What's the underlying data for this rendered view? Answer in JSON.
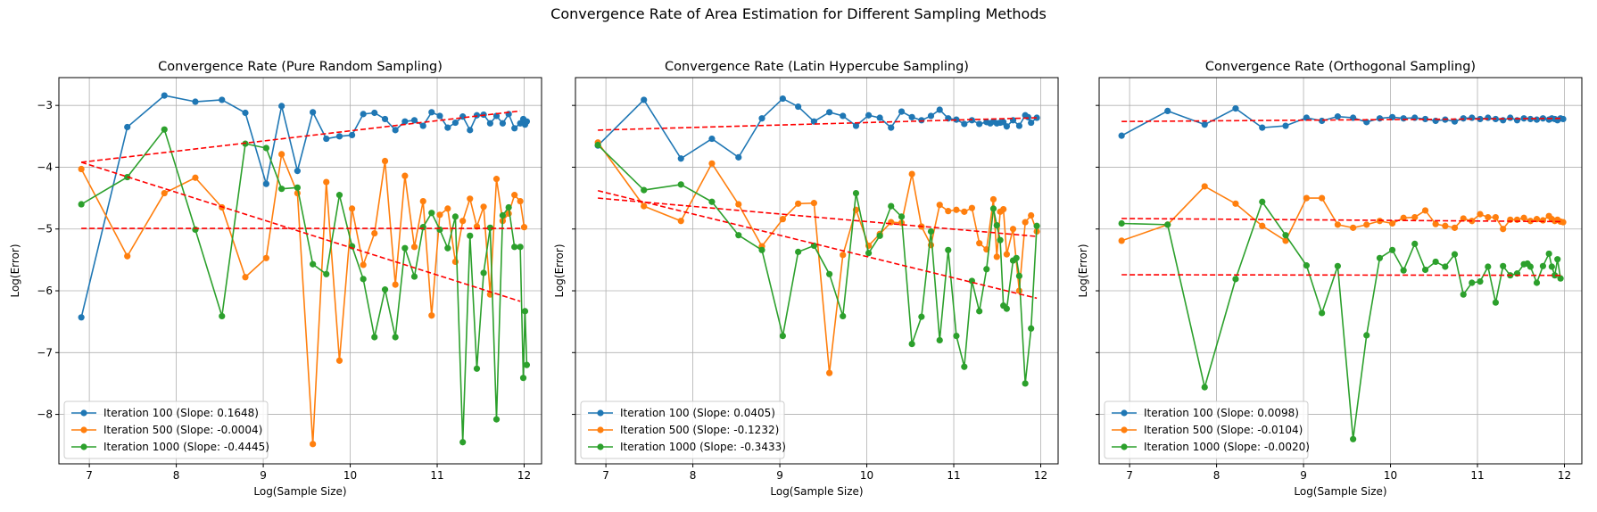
{
  "figure": {
    "title": "Convergence Rate of Area Estimation for Different Sampling Methods"
  },
  "colors": {
    "iter100": "#1f77b4",
    "iter500": "#ff7f0e",
    "iter1000": "#2ca02c",
    "fit": "#ff0000",
    "grid": "#b0b0b0"
  },
  "chart_data": [
    {
      "type": "line",
      "title": "Convergence Rate (Pure Random Sampling)",
      "xlabel": "Log(Sample Size)",
      "ylabel": "Log(Error)",
      "xlim": [
        6.65,
        12.2
      ],
      "ylim": [
        -8.8,
        -2.55
      ],
      "xticks": [
        7,
        8,
        9,
        10,
        11,
        12
      ],
      "yticks": [
        -8,
        -7,
        -6,
        -5,
        -4,
        -3
      ],
      "grid": true,
      "legend_position": "lower-left",
      "x": [
        6.908,
        7.437,
        7.863,
        8.219,
        8.525,
        8.794,
        9.034,
        9.211,
        9.393,
        9.57,
        9.725,
        9.876,
        10.021,
        10.15,
        10.279,
        10.4,
        10.519,
        10.629,
        10.738,
        10.838,
        10.936,
        11.03,
        11.121,
        11.209,
        11.294,
        11.377,
        11.456,
        11.534,
        11.609,
        11.682,
        11.753,
        11.822,
        11.889,
        11.955
      ],
      "series": [
        {
          "name": "Iteration 100 (Slope: 0.1648)",
          "key": "iter100",
          "values": [
            -6.43,
            -3.35,
            -2.84,
            -2.94,
            -2.91,
            -3.12,
            -4.27,
            -3.01,
            -4.06,
            -3.11,
            -3.54,
            -3.5,
            -3.48,
            -3.14,
            -3.12,
            -3.22,
            -3.4,
            -3.26,
            -3.24,
            -3.33,
            -3.11,
            -3.17,
            -3.36,
            -3.28,
            -3.18,
            -3.4,
            -3.16,
            -3.15,
            -3.29,
            -3.17,
            -3.29,
            -3.14,
            -3.37,
            -3.29,
            -3.22,
            -3.31,
            -3.26
          ],
          "x": [
            6.908,
            7.437,
            7.863,
            8.219,
            8.525,
            8.794,
            9.034,
            9.211,
            9.393,
            9.57,
            9.725,
            9.876,
            10.021,
            10.15,
            10.279,
            10.4,
            10.519,
            10.629,
            10.738,
            10.838,
            10.936,
            11.03,
            11.121,
            11.209,
            11.294,
            11.377,
            11.456,
            11.534,
            11.609,
            11.682,
            11.753,
            11.822,
            11.889,
            11.955,
            11.99,
            12.01,
            12.03
          ]
        },
        {
          "name": "Iteration 500 (Slope: -0.0004)",
          "key": "iter500",
          "values": [
            -4.03,
            -5.44,
            -4.42,
            -4.17,
            -4.65,
            -5.78,
            -5.47,
            -3.79,
            -4.42,
            -8.48,
            -4.24,
            -7.13,
            -4.67,
            -5.58,
            -5.07,
            -3.9,
            -5.9,
            -4.14,
            -5.29,
            -4.55,
            -6.4,
            -4.77,
            -4.67,
            -5.53,
            -4.87,
            -4.51,
            -4.96,
            -4.64,
            -6.06,
            -4.19,
            -4.87,
            -4.75,
            -4.45,
            -4.55,
            -4.97
          ],
          "x": [
            6.908,
            7.437,
            7.863,
            8.219,
            8.525,
            8.794,
            9.034,
            9.211,
            9.393,
            9.57,
            9.725,
            9.876,
            10.021,
            10.15,
            10.279,
            10.4,
            10.519,
            10.629,
            10.738,
            10.838,
            10.936,
            11.03,
            11.121,
            11.209,
            11.294,
            11.377,
            11.456,
            11.534,
            11.609,
            11.682,
            11.753,
            11.822,
            11.889,
            11.955,
            12.0
          ]
        },
        {
          "name": "Iteration 1000 (Slope: -0.4445)",
          "key": "iter1000",
          "values": [
            -4.6,
            -4.16,
            -3.39,
            -5.01,
            -6.41,
            -3.62,
            -3.69,
            -4.35,
            -4.33,
            -5.57,
            -5.73,
            -4.45,
            -5.28,
            -5.81,
            -6.75,
            -5.98,
            -6.75,
            -5.31,
            -5.77,
            -4.97,
            -4.74,
            -5.01,
            -5.31,
            -4.8,
            -8.45,
            -5.11,
            -7.26,
            -5.71,
            -4.98,
            -8.08,
            -4.78,
            -4.65,
            -5.29,
            -5.29,
            -7.41,
            -6.33,
            -7.2
          ],
          "x": [
            6.908,
            7.437,
            7.863,
            8.219,
            8.525,
            8.794,
            9.034,
            9.211,
            9.393,
            9.57,
            9.725,
            9.876,
            10.021,
            10.15,
            10.279,
            10.4,
            10.519,
            10.629,
            10.738,
            10.838,
            10.936,
            11.03,
            11.121,
            11.209,
            11.294,
            11.377,
            11.456,
            11.534,
            11.609,
            11.682,
            11.753,
            11.822,
            11.889,
            11.955,
            11.99,
            12.01,
            12.03
          ]
        }
      ],
      "fits": [
        {
          "key": "iter100",
          "x": [
            6.908,
            11.955
          ],
          "y": [
            -3.92,
            -3.09
          ]
        },
        {
          "key": "iter500",
          "x": [
            6.908,
            11.955
          ],
          "y": [
            -4.99,
            -4.99
          ]
        },
        {
          "key": "iter1000",
          "x": [
            6.908,
            11.955
          ],
          "y": [
            -3.92,
            -6.17
          ]
        }
      ]
    },
    {
      "type": "line",
      "title": "Convergence Rate (Latin Hypercube Sampling)",
      "xlabel": "Log(Sample Size)",
      "ylabel": "Log(Error)",
      "xlim": [
        6.65,
        12.2
      ],
      "ylim": [
        -8.8,
        -2.55
      ],
      "xticks": [
        7,
        8,
        9,
        10,
        11,
        12
      ],
      "yticks": [
        -8,
        -7,
        -6,
        -5,
        -4,
        -3
      ],
      "grid": true,
      "legend_position": "lower-left",
      "series": [
        {
          "name": "Iteration 100 (Slope: 0.0405)",
          "key": "iter100",
          "values": [
            -3.65,
            -2.91,
            -3.86,
            -3.54,
            -3.84,
            -3.21,
            -2.89,
            -3.02,
            -3.26,
            -3.11,
            -3.17,
            -3.33,
            -3.16,
            -3.2,
            -3.36,
            -3.1,
            -3.19,
            -3.24,
            -3.17,
            -3.07,
            -3.21,
            -3.23,
            -3.3,
            -3.24,
            -3.3,
            -3.27,
            -3.29,
            -3.26,
            -3.29,
            -3.28,
            -3.27,
            -3.34,
            -3.24,
            -3.33,
            -3.16,
            -3.19,
            -3.28,
            -3.2
          ],
          "x": [
            6.908,
            7.437,
            7.863,
            8.219,
            8.525,
            8.794,
            9.034,
            9.211,
            9.393,
            9.57,
            9.725,
            9.876,
            10.021,
            10.15,
            10.279,
            10.4,
            10.519,
            10.629,
            10.738,
            10.838,
            10.936,
            11.03,
            11.121,
            11.209,
            11.294,
            11.377,
            11.42,
            11.456,
            11.495,
            11.534,
            11.571,
            11.609,
            11.682,
            11.753,
            11.822,
            11.855,
            11.889,
            11.955
          ]
        },
        {
          "name": "Iteration 500 (Slope: -0.1232)",
          "key": "iter500",
          "values": [
            -3.6,
            -4.63,
            -4.87,
            -3.94,
            -4.6,
            -5.28,
            -4.84,
            -4.59,
            -4.58,
            -7.33,
            -5.42,
            -4.69,
            -5.27,
            -5.08,
            -4.89,
            -4.9,
            -4.11,
            -4.96,
            -5.26,
            -4.61,
            -4.71,
            -4.69,
            -4.72,
            -4.66,
            -5.23,
            -5.33,
            -4.52,
            -5.45,
            -4.72,
            -4.68,
            -5.41,
            -5.0,
            -6.0,
            -4.89,
            -4.78,
            -5.04
          ],
          "x": [
            6.908,
            7.437,
            7.863,
            8.219,
            8.525,
            8.794,
            9.034,
            9.211,
            9.393,
            9.57,
            9.725,
            9.876,
            10.021,
            10.15,
            10.279,
            10.4,
            10.519,
            10.629,
            10.738,
            10.838,
            10.936,
            11.03,
            11.121,
            11.209,
            11.294,
            11.377,
            11.456,
            11.495,
            11.534,
            11.571,
            11.609,
            11.682,
            11.753,
            11.822,
            11.889,
            11.955
          ]
        },
        {
          "name": "Iteration 1000 (Slope: -0.3433)",
          "key": "iter1000",
          "values": [
            -3.64,
            -4.37,
            -4.28,
            -4.56,
            -5.1,
            -5.34,
            -6.73,
            -5.37,
            -5.27,
            -5.73,
            -6.41,
            -4.42,
            -5.39,
            -5.11,
            -4.63,
            -4.8,
            -6.86,
            -6.42,
            -5.04,
            -6.8,
            -5.34,
            -6.73,
            -7.23,
            -5.84,
            -6.33,
            -5.65,
            -4.67,
            -4.94,
            -5.18,
            -6.24,
            -6.29,
            -5.51,
            -5.47,
            -5.76,
            -7.5,
            -6.61,
            -4.95
          ],
          "x": [
            6.908,
            7.437,
            7.863,
            8.219,
            8.525,
            8.794,
            9.034,
            9.211,
            9.393,
            9.57,
            9.725,
            9.876,
            10.021,
            10.15,
            10.279,
            10.4,
            10.519,
            10.629,
            10.738,
            10.838,
            10.936,
            11.03,
            11.121,
            11.209,
            11.294,
            11.377,
            11.456,
            11.495,
            11.534,
            11.571,
            11.609,
            11.682,
            11.72,
            11.753,
            11.822,
            11.889,
            11.955
          ]
        }
      ],
      "fits": [
        {
          "key": "iter100",
          "x": [
            6.908,
            11.955
          ],
          "y": [
            -3.4,
            -3.2
          ]
        },
        {
          "key": "iter500",
          "x": [
            6.908,
            11.955
          ],
          "y": [
            -4.5,
            -5.12
          ]
        },
        {
          "key": "iter1000",
          "x": [
            6.908,
            11.955
          ],
          "y": [
            -4.38,
            -6.12
          ]
        }
      ]
    },
    {
      "type": "line",
      "title": "Convergence Rate (Orthogonal Sampling)",
      "xlabel": "Log(Sample Size)",
      "ylabel": "Log(Error)",
      "xlim": [
        6.65,
        12.2
      ],
      "ylim": [
        -8.8,
        -2.55
      ],
      "xticks": [
        7,
        8,
        9,
        10,
        11,
        12
      ],
      "yticks": [
        -8,
        -7,
        -6,
        -5,
        -4,
        -3
      ],
      "grid": true,
      "legend_position": "lower-left",
      "series": [
        {
          "name": "Iteration 100 (Slope: 0.0098)",
          "key": "iter100",
          "values": [
            -3.49,
            -3.09,
            -3.31,
            -3.05,
            -3.36,
            -3.33,
            -3.2,
            -3.25,
            -3.18,
            -3.2,
            -3.27,
            -3.21,
            -3.19,
            -3.21,
            -3.2,
            -3.22,
            -3.25,
            -3.23,
            -3.26,
            -3.21,
            -3.2,
            -3.22,
            -3.2,
            -3.22,
            -3.24,
            -3.2,
            -3.24,
            -3.21,
            -3.22,
            -3.23,
            -3.21,
            -3.23,
            -3.21,
            -3.22,
            -3.24,
            -3.21,
            -3.22
          ],
          "x": [
            6.908,
            7.437,
            7.863,
            8.219,
            8.525,
            8.794,
            9.034,
            9.211,
            9.393,
            9.57,
            9.725,
            9.876,
            10.021,
            10.15,
            10.279,
            10.4,
            10.519,
            10.629,
            10.738,
            10.838,
            10.936,
            11.03,
            11.121,
            11.209,
            11.294,
            11.377,
            11.456,
            11.534,
            11.609,
            11.682,
            11.753,
            11.822,
            11.855,
            11.889,
            11.92,
            11.955,
            11.985
          ]
        },
        {
          "name": "Iteration 500 (Slope: -0.0104)",
          "key": "iter500",
          "values": [
            -5.19,
            -4.93,
            -4.31,
            -4.59,
            -4.95,
            -5.19,
            -4.5,
            -4.5,
            -4.93,
            -4.98,
            -4.93,
            -4.87,
            -4.91,
            -4.82,
            -4.81,
            -4.7,
            -4.92,
            -4.95,
            -4.98,
            -4.83,
            -4.87,
            -4.76,
            -4.81,
            -4.81,
            -5.0,
            -4.85,
            -4.85,
            -4.82,
            -4.87,
            -4.84,
            -4.86,
            -4.79,
            -4.84,
            -4.87,
            -4.85,
            -4.88,
            -4.89
          ],
          "x": [
            6.908,
            7.437,
            7.863,
            8.219,
            8.525,
            8.794,
            9.034,
            9.211,
            9.393,
            9.57,
            9.725,
            9.876,
            10.021,
            10.15,
            10.279,
            10.4,
            10.519,
            10.629,
            10.738,
            10.838,
            10.936,
            11.03,
            11.121,
            11.209,
            11.294,
            11.377,
            11.456,
            11.534,
            11.609,
            11.682,
            11.753,
            11.822,
            11.855,
            11.889,
            11.92,
            11.955,
            11.985
          ]
        },
        {
          "name": "Iteration 1000 (Slope: -0.0020)",
          "key": "iter1000",
          "values": [
            -4.91,
            -4.93,
            -7.56,
            -5.81,
            -4.56,
            -5.1,
            -5.59,
            -6.36,
            -5.6,
            -8.4,
            -6.72,
            -5.47,
            -5.34,
            -5.67,
            -5.24,
            -5.66,
            -5.53,
            -5.61,
            -5.41,
            -6.06,
            -5.87,
            -5.85,
            -5.61,
            -6.19,
            -5.6,
            -5.75,
            -5.72,
            -5.57,
            -5.56,
            -5.61,
            -5.87,
            -5.6,
            -5.4,
            -5.61,
            -5.75,
            -5.49,
            -5.8
          ],
          "x": [
            6.908,
            7.437,
            7.863,
            8.219,
            8.525,
            8.794,
            9.034,
            9.211,
            9.393,
            9.57,
            9.725,
            9.876,
            10.021,
            10.15,
            10.279,
            10.4,
            10.519,
            10.629,
            10.738,
            10.838,
            10.936,
            11.03,
            11.121,
            11.209,
            11.294,
            11.377,
            11.456,
            11.534,
            11.575,
            11.609,
            11.682,
            11.753,
            11.822,
            11.855,
            11.889,
            11.92,
            11.955
          ]
        }
      ],
      "fits": [
        {
          "key": "iter100",
          "x": [
            6.908,
            11.955
          ],
          "y": [
            -3.26,
            -3.21
          ]
        },
        {
          "key": "iter500",
          "x": [
            6.908,
            11.955
          ],
          "y": [
            -4.83,
            -4.88
          ]
        },
        {
          "key": "iter1000",
          "x": [
            6.908,
            11.955
          ],
          "y": [
            -5.74,
            -5.75
          ]
        }
      ]
    }
  ]
}
